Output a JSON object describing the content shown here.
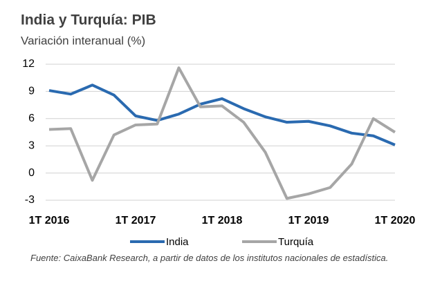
{
  "chart_data": {
    "type": "line",
    "title": "India y Turquía: PIB",
    "subtitle": "Variación interanual (%)",
    "categories": [
      "1T 2016",
      null,
      null,
      null,
      "1T 2017",
      null,
      null,
      null,
      "1T 2018",
      null,
      null,
      null,
      "1T 2019",
      null,
      null,
      null,
      "1T 2020"
    ],
    "series": [
      {
        "name": "India",
        "color": "#2a6ab0",
        "values": [
          9.1,
          8.7,
          9.7,
          8.6,
          6.3,
          5.8,
          6.5,
          7.6,
          8.2,
          7.1,
          6.2,
          5.6,
          5.7,
          5.2,
          4.4,
          4.1,
          3.1
        ]
      },
      {
        "name": "Turquía",
        "color": "#a6a6a6",
        "values": [
          4.8,
          4.9,
          -0.8,
          4.2,
          5.3,
          5.4,
          11.6,
          7.3,
          7.4,
          5.6,
          2.3,
          -2.8,
          -2.3,
          -1.6,
          1.0,
          6.0,
          4.5
        ]
      }
    ],
    "ylim": [
      -3,
      12
    ],
    "yticks": [
      -3,
      0,
      3,
      6,
      9,
      12
    ],
    "grid": true,
    "legend": "bottom",
    "source": "Fuente: CaixaBank Research, a partir de datos de los institutos nacionales de estadística."
  }
}
